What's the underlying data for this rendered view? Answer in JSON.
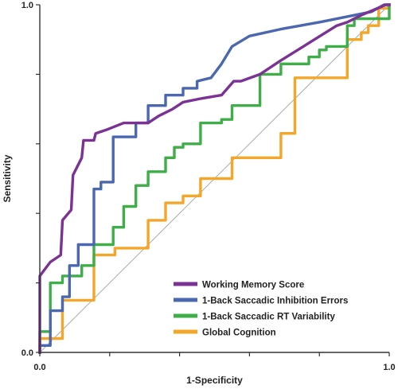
{
  "chart_data": {
    "type": "line",
    "title": "",
    "xlabel": "1-Specificity",
    "ylabel": "Sensitivity",
    "xlim": [
      0,
      1
    ],
    "ylim": [
      0,
      1
    ],
    "x_tick_labels": [
      {
        "value": 0,
        "label": "0.0"
      },
      {
        "value": 1,
        "label": "1.0"
      }
    ],
    "y_tick_labels": [
      {
        "value": 0,
        "label": "0.0"
      },
      {
        "value": 1,
        "label": "1.0"
      }
    ],
    "x_minor_ticks": [
      0.2,
      0.4,
      0.6,
      0.8
    ],
    "y_minor_ticks": [
      0.2,
      0.4,
      0.6,
      0.8
    ],
    "grid": false,
    "legend_position": "bottom-right",
    "reference_line": {
      "x": [
        0,
        1
      ],
      "y": [
        0,
        1
      ],
      "color": "#aaaaaa"
    },
    "series": [
      {
        "name": "Working Memory Score",
        "color": "#7b3294",
        "x": [
          0,
          0,
          0.03,
          0.06,
          0.065,
          0.09,
          0.095,
          0.12,
          0.125,
          0.155,
          0.16,
          0.19,
          0.215,
          0.24,
          0.31,
          0.34,
          0.38,
          0.41,
          0.46,
          0.52,
          0.555,
          0.575,
          0.63,
          0.69,
          0.77,
          0.85,
          0.88,
          0.92,
          0.99,
          1
        ],
        "y": [
          0,
          0.22,
          0.26,
          0.28,
          0.38,
          0.41,
          0.51,
          0.56,
          0.61,
          0.61,
          0.63,
          0.64,
          0.65,
          0.66,
          0.66,
          0.68,
          0.7,
          0.72,
          0.73,
          0.74,
          0.78,
          0.78,
          0.8,
          0.84,
          0.89,
          0.94,
          0.95,
          0.97,
          1,
          1
        ]
      },
      {
        "name": "1-Back Saccadic Inhibition Errors",
        "color": "#4a67b0",
        "x": [
          0,
          0,
          0.03,
          0.03,
          0.065,
          0.065,
          0.085,
          0.085,
          0.11,
          0.11,
          0.155,
          0.155,
          0.175,
          0.175,
          0.21,
          0.21,
          0.275,
          0.275,
          0.31,
          0.31,
          0.36,
          0.36,
          0.41,
          0.41,
          0.45,
          0.45,
          0.49,
          0.52,
          0.55,
          0.6,
          0.69,
          0.8,
          0.95,
          0.985,
          1
        ],
        "y": [
          0,
          0.02,
          0.02,
          0.12,
          0.12,
          0.16,
          0.16,
          0.25,
          0.25,
          0.31,
          0.31,
          0.47,
          0.47,
          0.49,
          0.49,
          0.62,
          0.62,
          0.66,
          0.66,
          0.71,
          0.71,
          0.74,
          0.74,
          0.76,
          0.76,
          0.78,
          0.79,
          0.83,
          0.88,
          0.91,
          0.93,
          0.95,
          0.98,
          1,
          1
        ]
      },
      {
        "name": "1-Back Saccadic RT Variability",
        "color": "#3fae49",
        "x": [
          0,
          0,
          0.03,
          0.03,
          0.065,
          0.065,
          0.12,
          0.12,
          0.155,
          0.155,
          0.21,
          0.21,
          0.24,
          0.24,
          0.275,
          0.275,
          0.31,
          0.31,
          0.36,
          0.36,
          0.385,
          0.385,
          0.41,
          0.41,
          0.46,
          0.46,
          0.52,
          0.52,
          0.55,
          0.55,
          0.63,
          0.63,
          0.69,
          0.69,
          0.77,
          0.77,
          0.8,
          0.8,
          0.82,
          0.82,
          0.88,
          0.88,
          0.9,
          0.9,
          1,
          1
        ],
        "y": [
          0,
          0.06,
          0.06,
          0.2,
          0.2,
          0.22,
          0.22,
          0.25,
          0.25,
          0.31,
          0.31,
          0.36,
          0.36,
          0.42,
          0.42,
          0.48,
          0.48,
          0.52,
          0.52,
          0.56,
          0.56,
          0.59,
          0.59,
          0.6,
          0.6,
          0.66,
          0.66,
          0.67,
          0.67,
          0.71,
          0.71,
          0.8,
          0.8,
          0.83,
          0.83,
          0.85,
          0.85,
          0.87,
          0.87,
          0.88,
          0.88,
          0.94,
          0.94,
          0.96,
          0.96,
          1
        ]
      },
      {
        "name": "Global Cognition",
        "color": "#f4a62a",
        "x": [
          0,
          0,
          0.065,
          0.065,
          0.155,
          0.155,
          0.215,
          0.215,
          0.31,
          0.31,
          0.36,
          0.36,
          0.41,
          0.41,
          0.46,
          0.46,
          0.55,
          0.55,
          0.69,
          0.69,
          0.73,
          0.73,
          0.88,
          0.88,
          0.92,
          0.92,
          0.94,
          0.94,
          0.97,
          0.97,
          1,
          1
        ],
        "y": [
          0,
          0.04,
          0.04,
          0.15,
          0.15,
          0.28,
          0.28,
          0.3,
          0.3,
          0.38,
          0.38,
          0.43,
          0.43,
          0.45,
          0.45,
          0.5,
          0.5,
          0.56,
          0.56,
          0.63,
          0.63,
          0.79,
          0.79,
          0.9,
          0.9,
          0.92,
          0.92,
          0.94,
          0.94,
          0.99,
          0.99,
          1
        ]
      }
    ]
  }
}
